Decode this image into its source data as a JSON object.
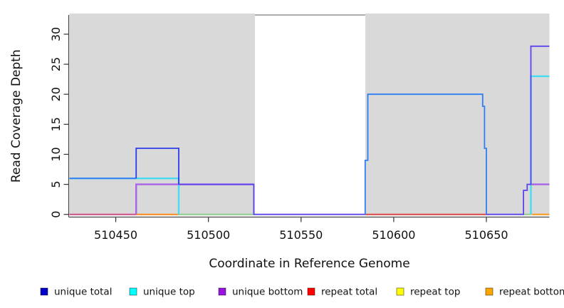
{
  "figure": {
    "background_color": "#ffffff",
    "panel_shade_color": "#d9d9d9"
  },
  "chart_data": {
    "type": "line",
    "subtype": "step-coverage-plot",
    "title": "",
    "xlabel": "Coordinate in Reference Genome",
    "ylabel": "Read Coverage Depth",
    "xlim": [
      510425,
      510684
    ],
    "ylim": [
      -0.45,
      33.2
    ],
    "x_ticks": [
      510450,
      510500,
      510550,
      510600,
      510650
    ],
    "x_tick_labels": [
      "510450",
      "510500",
      "510550",
      "510600",
      "510650"
    ],
    "y_ticks": [
      0,
      5,
      10,
      15,
      20,
      25,
      30
    ],
    "y_tick_labels": [
      "0",
      "5",
      "10",
      "15",
      "20",
      "25",
      "30"
    ],
    "grid": false,
    "legend_position": "bottom",
    "frame": {
      "axis_line_color": "#5f5f5f",
      "left_edge_color": "#454545",
      "top_gap_line_color": "#8f8f8f",
      "tick_color": "#333333",
      "label_color": "#111111"
    },
    "shaded_regions": [
      {
        "name": "left-gray-region",
        "x1": 510425,
        "x2": 510525.1,
        "color": "#d9d9d9"
      },
      {
        "name": "right-gray-region",
        "x1": 510584.6,
        "x2": 510684,
        "color": "#d9d9d9"
      }
    ],
    "series": [
      {
        "name": "repeat total",
        "legend_color": "#ff0000",
        "lw": 2,
        "segments": [
          {
            "color": "#d1508c",
            "points": [
              [
                510425,
                0
              ],
              [
                510461,
                0
              ]
            ]
          },
          {
            "color": "#e04848",
            "points": [
              [
                510584.6,
                0
              ],
              [
                510650,
                0
              ]
            ]
          }
        ]
      },
      {
        "name": "repeat top",
        "legend_color": "#ffff00",
        "lw": 2,
        "segments": [
          {
            "color": "#8ed08e",
            "points": [
              [
                510484,
                0
              ],
              [
                510524.5,
                0
              ]
            ]
          },
          {
            "color": "#8ed08e",
            "points": [
              [
                510670,
                0
              ],
              [
                510674,
                0
              ]
            ]
          }
        ]
      },
      {
        "name": "repeat bottom",
        "legend_color": "#ffa500",
        "lw": 2,
        "segments": [
          {
            "color": "#ff8c1a",
            "points": [
              [
                510461,
                0
              ],
              [
                510484,
                0
              ]
            ]
          },
          {
            "color": "#ff9a1a",
            "points": [
              [
                510674.5,
                0
              ],
              [
                510684,
                0
              ]
            ]
          }
        ]
      },
      {
        "name": "unique top",
        "legend_color": "#00ffff",
        "lw": 2.4,
        "segments": [
          {
            "color": "#45dcf0",
            "points": [
              [
                510425,
                6
              ],
              [
                510484,
                6
              ],
              [
                510484,
                0
              ]
            ]
          },
          {
            "color": "#45dcf0",
            "points": [
              [
                510674,
                0
              ],
              [
                510674,
                23
              ],
              [
                510684,
                23
              ]
            ]
          }
        ]
      },
      {
        "name": "unique bottom",
        "legend_color": "#9913e0",
        "lw": 2.4,
        "segments": [
          {
            "color": "#a863e8",
            "points": [
              [
                510461,
                0
              ],
              [
                510461,
                5
              ],
              [
                510524.5,
                5
              ]
            ]
          },
          {
            "color": "#a863e8",
            "points": [
              [
                510674,
                5
              ],
              [
                510684,
                5
              ]
            ]
          }
        ]
      },
      {
        "name": "unique total",
        "legend_color": "#0000cc",
        "lw": 1.8,
        "segments": [
          {
            "color": "#3b7af2",
            "points": [
              [
                510425,
                6
              ],
              [
                510461,
                6
              ]
            ]
          },
          {
            "color": "#2d3bea",
            "points": [
              [
                510461,
                6
              ],
              [
                510461,
                11
              ],
              [
                510484,
                11
              ],
              [
                510484,
                5
              ]
            ]
          },
          {
            "color": "#5a44ee",
            "points": [
              [
                510484,
                5
              ],
              [
                510524.5,
                5
              ],
              [
                510524.5,
                0
              ],
              [
                510584.6,
                0
              ]
            ]
          },
          {
            "color": "#2f7df5",
            "points": [
              [
                510584.6,
                0
              ],
              [
                510584.6,
                9
              ],
              [
                510586,
                9
              ],
              [
                510586,
                20
              ],
              [
                510648,
                20
              ],
              [
                510648,
                18
              ],
              [
                510649,
                18
              ],
              [
                510649,
                11
              ],
              [
                510650,
                11
              ],
              [
                510650,
                0
              ]
            ]
          },
          {
            "color": "#5a44ee",
            "points": [
              [
                510650,
                0
              ],
              [
                510670,
                0
              ],
              [
                510670,
                4
              ],
              [
                510672,
                4
              ],
              [
                510672,
                5
              ],
              [
                510674,
                5
              ],
              [
                510674,
                28
              ],
              [
                510684,
                28
              ]
            ]
          }
        ]
      }
    ],
    "legend": {
      "items": [
        {
          "label": "unique total",
          "color": "#0000cc"
        },
        {
          "label": "unique top",
          "color": "#00ffff"
        },
        {
          "label": "unique bottom",
          "color": "#9913e0"
        },
        {
          "label": "repeat total",
          "color": "#ff0000"
        },
        {
          "label": "repeat top",
          "color": "#ffff00"
        },
        {
          "label": "repeat bottom",
          "color": "#ffa500"
        }
      ]
    }
  }
}
